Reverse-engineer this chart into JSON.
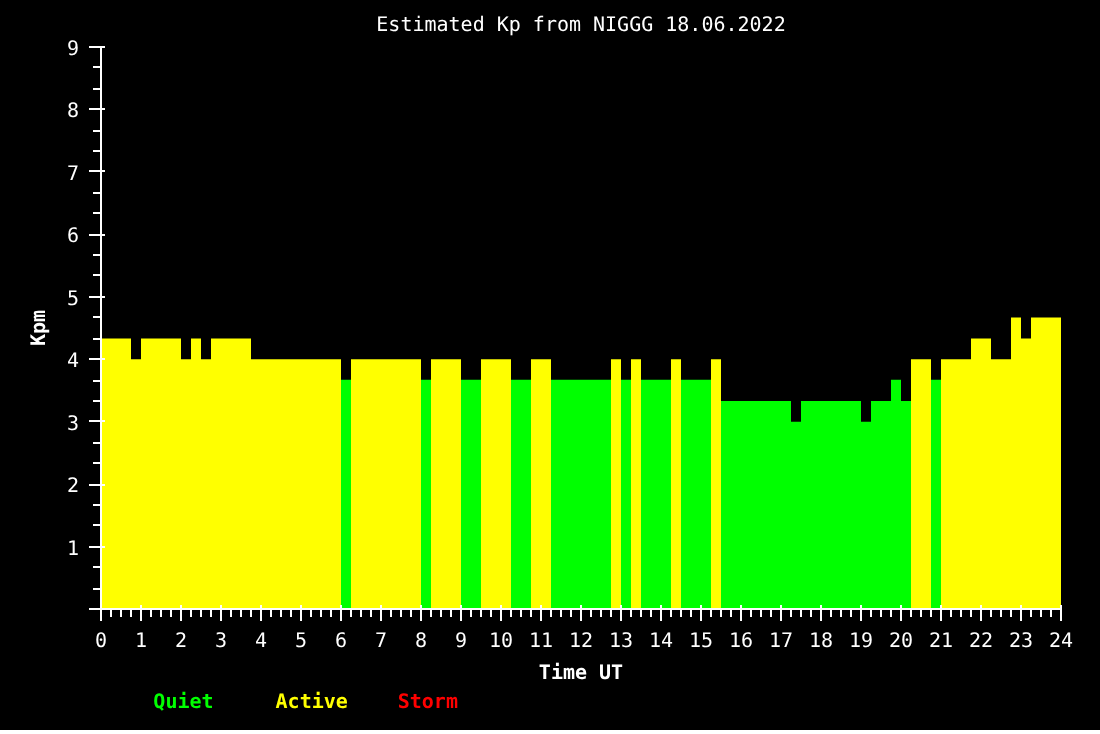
{
  "chart_data": {
    "type": "bar",
    "title": "Estimated Kp from NIGGG 18.06.2022",
    "xlabel": "Time UT",
    "ylabel": "Kpm",
    "x": [
      0.125,
      0.375,
      0.625,
      0.875,
      1.125,
      1.375,
      1.625,
      1.875,
      2.125,
      2.375,
      2.625,
      2.875,
      3.125,
      3.375,
      3.625,
      3.875,
      4.125,
      4.375,
      4.625,
      4.875,
      5.125,
      5.375,
      5.625,
      5.875,
      6.125,
      6.375,
      6.625,
      6.875,
      7.125,
      7.375,
      7.625,
      7.875,
      8.125,
      8.375,
      8.625,
      8.875,
      9.125,
      9.375,
      9.625,
      9.875,
      10.125,
      10.375,
      10.625,
      10.875,
      11.125,
      11.375,
      11.625,
      11.875,
      12.125,
      12.375,
      12.625,
      12.875,
      13.125,
      13.375,
      13.625,
      13.875,
      14.125,
      14.375,
      14.625,
      14.875,
      15.125,
      15.375,
      15.625,
      15.875,
      16.125,
      16.375,
      16.625,
      16.875,
      17.125,
      17.375,
      17.625,
      17.875,
      18.125,
      18.375,
      18.625,
      18.875,
      19.125,
      19.375,
      19.625,
      19.875,
      20.125,
      20.375,
      20.625,
      20.875,
      21.125,
      21.375,
      21.625,
      21.875,
      22.125,
      22.375,
      22.625,
      22.875,
      23.125,
      23.375,
      23.625,
      23.875
    ],
    "series": [
      {
        "name": "Quiet",
        "color": "#00ff00",
        "values": [
          null,
          null,
          null,
          null,
          null,
          null,
          null,
          null,
          null,
          null,
          null,
          null,
          null,
          null,
          null,
          null,
          null,
          null,
          null,
          null,
          null,
          null,
          null,
          null,
          3.67,
          null,
          null,
          null,
          null,
          null,
          null,
          null,
          3.67,
          null,
          null,
          null,
          3.67,
          3.67,
          null,
          null,
          null,
          3.67,
          3.67,
          null,
          null,
          3.67,
          3.67,
          3.67,
          3.67,
          3.67,
          3.67,
          null,
          3.67,
          null,
          3.67,
          3.67,
          3.67,
          null,
          3.67,
          3.67,
          3.67,
          null,
          3.33,
          3.33,
          3.33,
          3.33,
          3.33,
          3.33,
          3.33,
          3,
          3.33,
          3.33,
          3.33,
          3.33,
          3.33,
          3.33,
          3,
          3.33,
          3.33,
          3.67,
          3.33,
          null,
          null,
          3.67,
          null,
          null,
          null,
          null,
          null,
          null,
          null,
          null,
          null,
          null,
          null,
          null
        ]
      },
      {
        "name": "Active",
        "color": "#ffff00",
        "values": [
          4.33,
          4.33,
          4.33,
          4,
          4.33,
          4.33,
          4.33,
          4.33,
          4,
          4.33,
          4,
          4.33,
          4.33,
          4.33,
          4.33,
          4,
          4,
          4,
          4,
          4,
          4,
          4,
          4,
          4,
          null,
          4,
          4,
          4,
          4,
          4,
          4,
          4,
          null,
          4,
          4,
          4,
          null,
          null,
          4,
          4,
          4,
          null,
          null,
          4,
          4,
          null,
          null,
          null,
          null,
          null,
          null,
          4,
          null,
          4,
          null,
          null,
          null,
          4,
          null,
          null,
          null,
          4,
          null,
          null,
          null,
          null,
          null,
          null,
          null,
          null,
          null,
          null,
          null,
          null,
          null,
          null,
          null,
          null,
          null,
          null,
          null,
          4,
          4,
          null,
          4,
          4,
          4,
          4.33,
          4.33,
          4,
          4,
          4.67,
          4.33,
          4.67,
          4.67,
          4.67
        ]
      },
      {
        "name": "Storm",
        "color": "#ff0000",
        "values": [
          null,
          null,
          null,
          null,
          null,
          null,
          null,
          null,
          null,
          null,
          null,
          null,
          null,
          null,
          null,
          null,
          null,
          null,
          null,
          null,
          null,
          null,
          null,
          null,
          null,
          null,
          null,
          null,
          null,
          null,
          null,
          null,
          null,
          null,
          null,
          null,
          null,
          null,
          null,
          null,
          null,
          null,
          null,
          null,
          null,
          null,
          null,
          null,
          null,
          null,
          null,
          null,
          null,
          null,
          null,
          null,
          null,
          null,
          null,
          null,
          null,
          null,
          null,
          null,
          null,
          null,
          null,
          null,
          null,
          null,
          null,
          null,
          null,
          null,
          null,
          null,
          null,
          null,
          null,
          null,
          null,
          null,
          null,
          null,
          null,
          null,
          null,
          null,
          null,
          null,
          null,
          null,
          null,
          null,
          null,
          null
        ]
      }
    ],
    "xlim": [
      0,
      24
    ],
    "xticks": [
      0,
      1,
      2,
      3,
      4,
      5,
      6,
      7,
      8,
      9,
      10,
      11,
      12,
      13,
      14,
      15,
      16,
      17,
      18,
      19,
      20,
      21,
      22,
      23,
      24
    ],
    "ylim": [
      0,
      9
    ],
    "yticks": [
      {
        "value": 0,
        "label": null
      },
      1,
      2,
      3,
      4,
      5,
      6,
      7,
      8,
      9
    ],
    "grid": false,
    "legend": "bottom left"
  }
}
